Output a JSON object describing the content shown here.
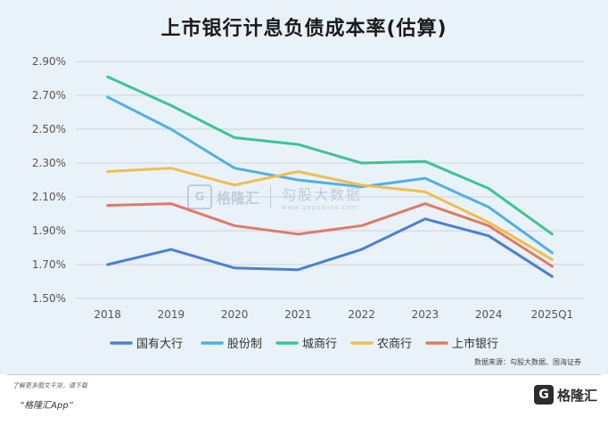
{
  "chart_data": {
    "type": "line",
    "title": "上市银行计息负债成本率(估算)",
    "categories": [
      "2018",
      "2019",
      "2020",
      "2021",
      "2022",
      "2023",
      "2024",
      "2025Q1"
    ],
    "ylim": [
      1.5,
      2.9
    ],
    "yticks": [
      1.5,
      1.7,
      1.9,
      2.1,
      2.3,
      2.5,
      2.7,
      2.9
    ],
    "ytick_labels": [
      "1.50%",
      "1.70%",
      "1.90%",
      "2.10%",
      "2.30%",
      "2.50%",
      "2.70%",
      "2.90%"
    ],
    "grid": true,
    "legend_position": "bottom",
    "series": [
      {
        "name": "国有大行",
        "color": "#4a7fd6",
        "values": [
          1.7,
          1.79,
          1.68,
          1.67,
          1.79,
          1.97,
          1.87,
          1.63
        ]
      },
      {
        "name": "股份制",
        "color": "#4fb0e6",
        "values": [
          2.69,
          2.5,
          2.27,
          2.2,
          2.16,
          2.21,
          2.04,
          1.77
        ]
      },
      {
        "name": "城商行",
        "color": "#3cc496",
        "values": [
          2.81,
          2.64,
          2.45,
          2.41,
          2.3,
          2.31,
          2.15,
          1.88
        ]
      },
      {
        "name": "农商行",
        "color": "#f0be4c",
        "values": [
          2.25,
          2.27,
          2.17,
          2.25,
          2.17,
          2.13,
          1.95,
          1.73
        ]
      },
      {
        "name": "上市银行",
        "color": "#e07a65",
        "values": [
          2.05,
          2.06,
          1.93,
          1.88,
          1.93,
          2.06,
          1.93,
          1.69
        ]
      }
    ]
  },
  "source": "数据来源：勾股大数据、国海证券",
  "watermark": {
    "mark": "G",
    "name": "格隆汇",
    "cn": "勾股大数据",
    "url": "www.gogudata.com"
  },
  "footer": {
    "tip": "了解更多图文干货，请下载",
    "app": "“格隆汇App”",
    "brand_mark": "G",
    "brand_text": "格隆汇"
  }
}
